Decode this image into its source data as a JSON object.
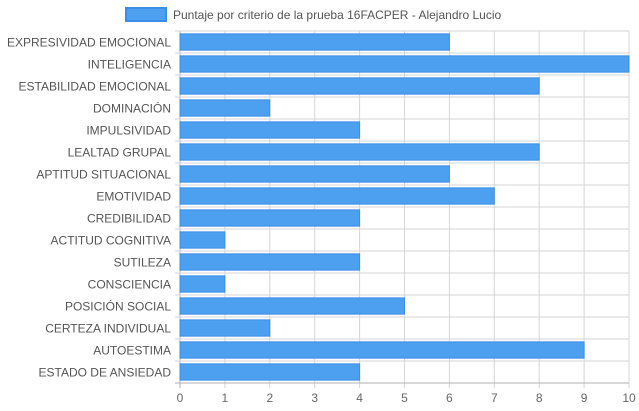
{
  "chart_data": {
    "type": "bar",
    "orientation": "horizontal",
    "categories": [
      "EXPRESIVIDAD EMOCIONAL",
      "INTELIGENCIA",
      "ESTABILIDAD EMOCIONAL",
      "DOMINACIÓN",
      "IMPULSIVIDAD",
      "LEALTAD GRUPAL",
      "APTITUD SITUACIONAL",
      "EMOTIVIDAD",
      "CREDIBILIDAD",
      "ACTITUD COGNITIVA",
      "SUTILEZA",
      "CONSCIENCIA",
      "POSICIÓN SOCIAL",
      "CERTEZA INDIVIDUAL",
      "AUTOESTIMA",
      "ESTADO DE ANSIEDAD"
    ],
    "series": [
      {
        "name": "Puntaje por criterio de la prueba 16FACPER - Alejandro Lucio",
        "values": [
          6,
          10,
          8,
          2,
          4,
          8,
          6,
          7,
          4,
          1,
          4,
          1,
          5,
          2,
          9,
          4
        ]
      }
    ],
    "xlim": [
      0,
      10
    ],
    "x_ticks": [
      "0",
      "1",
      "2",
      "3",
      "4",
      "5",
      "6",
      "7",
      "8",
      "9",
      "10"
    ],
    "grid": true,
    "legend_position": "top",
    "colors": {
      "bar_fill": "#4d9ff0",
      "bar_stroke": "#3b8de8",
      "grid": "#d6d6d6",
      "axis": "#b0b0b0",
      "label": "#555555",
      "tick": "#666666"
    }
  }
}
